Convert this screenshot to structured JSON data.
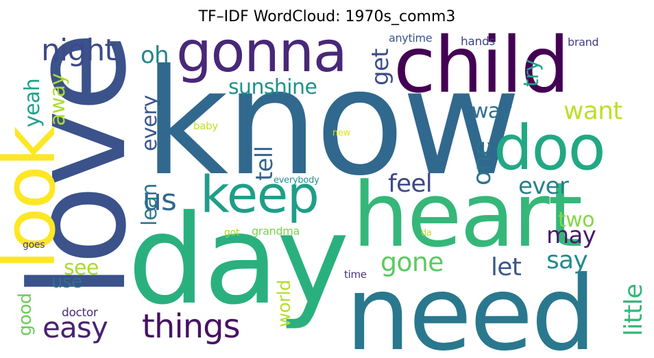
{
  "chart_data": {
    "type": "wordcloud",
    "title": "TF–IDF WordCloud: 1970s_comm3",
    "colormap": "viridis",
    "words": [
      {
        "text": "know",
        "weight": 1.0,
        "color": "#31688e",
        "orientation": "horizontal"
      },
      {
        "text": "love",
        "weight": 0.94,
        "color": "#3b528b",
        "orientation": "vertical"
      },
      {
        "text": "day",
        "weight": 0.91,
        "color": "#2ab07f",
        "orientation": "horizontal"
      },
      {
        "text": "need",
        "weight": 0.85,
        "color": "#2a788e",
        "orientation": "horizontal"
      },
      {
        "text": "heart",
        "weight": 0.83,
        "color": "#35b779",
        "orientation": "horizontal"
      },
      {
        "text": "child",
        "weight": 0.72,
        "color": "#440154",
        "orientation": "horizontal"
      },
      {
        "text": "look",
        "weight": 0.65,
        "color": "#fde725",
        "orientation": "vertical"
      },
      {
        "text": "doo",
        "weight": 0.62,
        "color": "#22a884",
        "orientation": "horizontal"
      },
      {
        "text": "gonna",
        "weight": 0.58,
        "color": "#482878",
        "orientation": "horizontal"
      },
      {
        "text": "keep",
        "weight": 0.52,
        "color": "#1f9e89",
        "orientation": "horizontal"
      },
      {
        "text": "things",
        "weight": 0.28,
        "color": "#471365",
        "orientation": "horizontal"
      },
      {
        "text": "easy",
        "weight": 0.25,
        "color": "#482173",
        "orientation": "horizontal"
      },
      {
        "text": "night",
        "weight": 0.25,
        "color": "#3e4a89",
        "orientation": "horizontal"
      },
      {
        "text": "us",
        "weight": 0.24,
        "color": "#31688e",
        "orientation": "horizontal"
      },
      {
        "text": "gone",
        "weight": 0.21,
        "color": "#5ec962",
        "orientation": "horizontal"
      },
      {
        "text": "feel",
        "weight": 0.21,
        "color": "#3e4989",
        "orientation": "horizontal"
      },
      {
        "text": "one",
        "weight": 0.21,
        "color": "#2c728e",
        "orientation": "vertical"
      },
      {
        "text": "little",
        "weight": 0.2,
        "color": "#35b779",
        "orientation": "vertical"
      },
      {
        "text": "want",
        "weight": 0.2,
        "color": "#bddf26",
        "orientation": "horizontal"
      },
      {
        "text": "let",
        "weight": 0.19,
        "color": "#39568c",
        "orientation": "horizontal"
      },
      {
        "text": "say",
        "weight": 0.19,
        "color": "#238a8d",
        "orientation": "horizontal"
      },
      {
        "text": "may",
        "weight": 0.18,
        "color": "#481a6c",
        "orientation": "horizontal"
      },
      {
        "text": "sunshine",
        "weight": 0.18,
        "color": "#20928c",
        "orientation": "horizontal"
      },
      {
        "text": "ever",
        "weight": 0.18,
        "color": "#277f8e",
        "orientation": "horizontal"
      },
      {
        "text": "tell",
        "weight": 0.18,
        "color": "#33638d",
        "orientation": "vertical"
      },
      {
        "text": "get",
        "weight": 0.17,
        "color": "#3e4c8a",
        "orientation": "vertical"
      },
      {
        "text": "oh",
        "weight": 0.17,
        "color": "#25858e",
        "orientation": "horizontal"
      },
      {
        "text": "away",
        "weight": 0.17,
        "color": "#addc30",
        "orientation": "vertical"
      },
      {
        "text": "yeah",
        "weight": 0.17,
        "color": "#1fa088",
        "orientation": "vertical"
      },
      {
        "text": "way",
        "weight": 0.17,
        "color": "#2e6f8e",
        "orientation": "horizontal"
      },
      {
        "text": "every",
        "weight": 0.16,
        "color": "#39568c",
        "orientation": "vertical"
      },
      {
        "text": "two",
        "weight": 0.16,
        "color": "#86d549",
        "orientation": "horizontal"
      },
      {
        "text": "lean",
        "weight": 0.16,
        "color": "#2b758e",
        "orientation": "vertical"
      },
      {
        "text": "try",
        "weight": 0.15,
        "color": "#21a685",
        "orientation": "vertical"
      },
      {
        "text": "see",
        "weight": 0.15,
        "color": "#a8db34",
        "orientation": "horizontal"
      },
      {
        "text": "use",
        "weight": 0.14,
        "color": "#2d708e",
        "orientation": "horizontal"
      },
      {
        "text": "world",
        "weight": 0.13,
        "color": "#b5de2b",
        "orientation": "vertical"
      },
      {
        "text": "good",
        "weight": 0.13,
        "color": "#6ccd5a",
        "orientation": "vertical"
      },
      {
        "text": "doctor",
        "weight": 0.08,
        "color": "#472d7b",
        "orientation": "horizontal"
      },
      {
        "text": "grandma",
        "weight": 0.08,
        "color": "#7ad151",
        "orientation": "horizontal"
      },
      {
        "text": "hands",
        "weight": 0.08,
        "color": "#404688",
        "orientation": "horizontal"
      },
      {
        "text": "brand",
        "weight": 0.08,
        "color": "#424086",
        "orientation": "horizontal"
      },
      {
        "text": "anytime",
        "weight": 0.07,
        "color": "#3b528b",
        "orientation": "horizontal"
      },
      {
        "text": "baby",
        "weight": 0.07,
        "color": "#c2df23",
        "orientation": "horizontal"
      },
      {
        "text": "time",
        "weight": 0.07,
        "color": "#46327e",
        "orientation": "horizontal"
      },
      {
        "text": "everybody",
        "weight": 0.06,
        "color": "#21918c",
        "orientation": "horizontal"
      },
      {
        "text": "got",
        "weight": 0.06,
        "color": "#9fda3a",
        "orientation": "horizontal"
      },
      {
        "text": "da",
        "weight": 0.06,
        "color": "#bade28",
        "orientation": "horizontal"
      },
      {
        "text": "goes",
        "weight": 0.06,
        "color": "#443a83",
        "orientation": "horizontal"
      },
      {
        "text": "new",
        "weight": 0.06,
        "color": "#dde318",
        "orientation": "horizontal"
      }
    ]
  }
}
